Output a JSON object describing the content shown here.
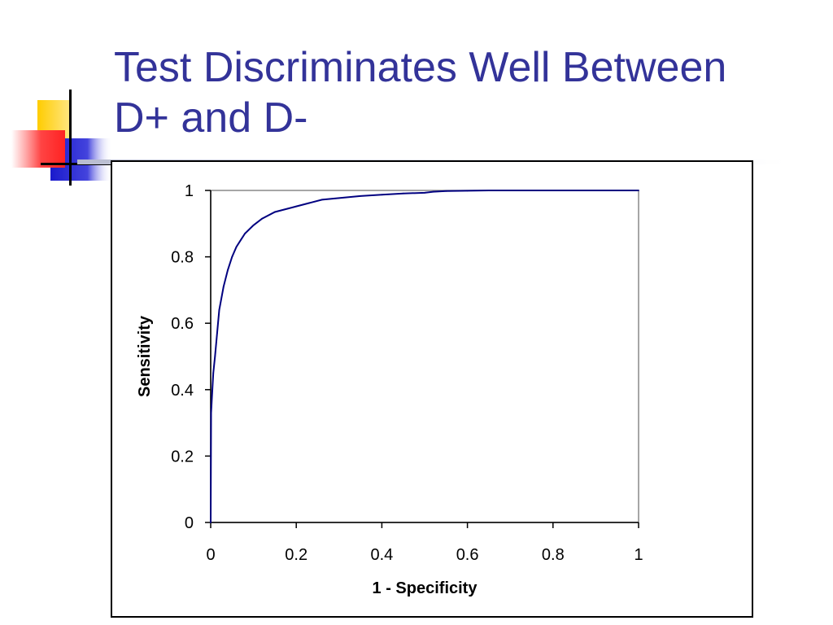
{
  "slide": {
    "title_lines": [
      "Test Discriminates Well Between",
      "D+ and D-"
    ],
    "colors": {
      "title": "#333399",
      "curve": "#000080",
      "deco_yellow": "#ffcc00",
      "deco_red": "#ff3333",
      "deco_blue": "#2222cc"
    }
  },
  "chart_data": {
    "type": "line",
    "title": "",
    "xlabel": "1 - Specificity",
    "ylabel": "Sensitivity",
    "xlim": [
      0,
      1
    ],
    "ylim": [
      0,
      1
    ],
    "xticks": [
      "0",
      "0.2",
      "0.4",
      "0.6",
      "0.8",
      "1"
    ],
    "yticks": [
      "0",
      "0.2",
      "0.4",
      "0.6",
      "0.8",
      "1"
    ],
    "grid": false,
    "legend": "none",
    "series": [
      {
        "x": [
          0,
          0.001,
          0.003,
          0.006,
          0.01,
          0.015,
          0.02,
          0.03,
          0.04,
          0.05,
          0.06,
          0.07,
          0.08,
          0.1,
          0.12,
          0.15,
          0.18,
          0.2,
          0.23,
          0.26,
          0.3,
          0.35,
          0.4,
          0.45,
          0.5,
          0.52,
          0.55,
          0.6,
          0.65,
          0.7,
          0.8,
          0.9,
          1
        ],
        "y": [
          0,
          0.33,
          0.38,
          0.45,
          0.5,
          0.57,
          0.64,
          0.71,
          0.76,
          0.8,
          0.83,
          0.85,
          0.87,
          0.895,
          0.915,
          0.935,
          0.945,
          0.952,
          0.962,
          0.972,
          0.977,
          0.983,
          0.987,
          0.991,
          0.993,
          0.996,
          0.998,
          0.999,
          1,
          1,
          1,
          1,
          1
        ]
      }
    ]
  }
}
